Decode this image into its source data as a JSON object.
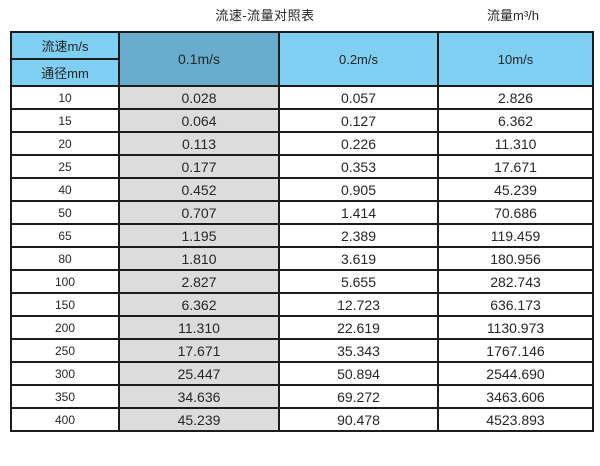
{
  "titles": {
    "main": "流速-流量对照表",
    "unit": "流量m³/h"
  },
  "table": {
    "corner_top": "流速m/s",
    "corner_bottom": "通径mm",
    "columns": [
      "0.1m/s",
      "0.2m/s",
      "10m/s"
    ],
    "rows": [
      [
        "10",
        "0.028",
        "0.057",
        "2.826"
      ],
      [
        "15",
        "0.064",
        "0.127",
        "6.362"
      ],
      [
        "20",
        "0.113",
        "0.226",
        "11.310"
      ],
      [
        "25",
        "0.177",
        "0.353",
        "17.671"
      ],
      [
        "40",
        "0.452",
        "0.905",
        "45.239"
      ],
      [
        "50",
        "0.707",
        "1.414",
        "70.686"
      ],
      [
        "65",
        "1.195",
        "2.389",
        "119.459"
      ],
      [
        "80",
        "1.810",
        "3.619",
        "180.956"
      ],
      [
        "100",
        "2.827",
        "5.655",
        "282.743"
      ],
      [
        "150",
        "6.362",
        "12.723",
        "636.173"
      ],
      [
        "200",
        "11.310",
        "22.619",
        "1130.973"
      ],
      [
        "250",
        "17.671",
        "35.343",
        "1767.146"
      ],
      [
        "300",
        "25.447",
        "50.894",
        "2544.690"
      ],
      [
        "350",
        "34.636",
        "69.272",
        "3463.606"
      ],
      [
        "400",
        "45.239",
        "90.478",
        "4523.893"
      ]
    ]
  },
  "colors": {
    "header_blue": "#7fcff3",
    "header_dark_blue": "#68adce",
    "highlight_column_grey": "#dcdcdc",
    "border": "#1c1c1c",
    "text": "#262626"
  },
  "chart_data": {
    "type": "table",
    "title": "流速-流量对照表",
    "value_unit_label": "流量m³/h",
    "row_header_labels": [
      "流速m/s",
      "通径mm"
    ],
    "categories_label": "通径mm",
    "categories": [
      10,
      15,
      20,
      25,
      40,
      50,
      65,
      80,
      100,
      150,
      200,
      250,
      300,
      350,
      400
    ],
    "series": [
      {
        "name": "0.1m/s",
        "values": [
          0.028,
          0.064,
          0.113,
          0.177,
          0.452,
          0.707,
          1.195,
          1.81,
          2.827,
          6.362,
          11.31,
          17.671,
          25.447,
          34.636,
          45.239
        ]
      },
      {
        "name": "0.2m/s",
        "values": [
          0.057,
          0.127,
          0.226,
          0.353,
          0.905,
          1.414,
          2.389,
          3.619,
          5.655,
          12.723,
          22.619,
          35.343,
          50.894,
          69.272,
          90.478
        ]
      },
      {
        "name": "10m/s",
        "values": [
          2.826,
          6.362,
          11.31,
          17.671,
          45.239,
          70.686,
          119.459,
          180.956,
          282.743,
          636.173,
          1130.973,
          1767.146,
          2544.69,
          3463.606,
          4523.893
        ]
      }
    ],
    "layout_hints": {
      "grid": "on",
      "highlighted_series": "0.1m/s",
      "header_rows": 2
    }
  }
}
